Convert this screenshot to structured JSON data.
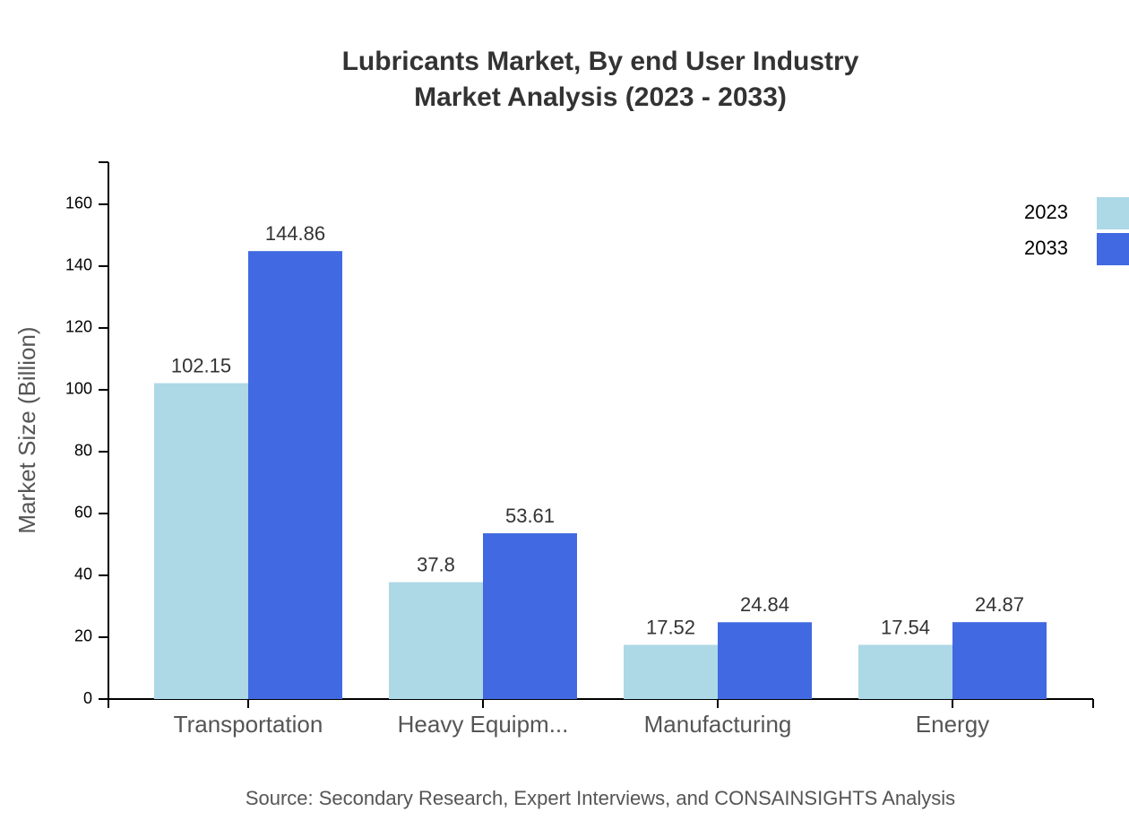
{
  "chart_data": {
    "type": "bar",
    "title": [
      "Lubricants Market, By end User Industry",
      "Market Analysis (2023 - 2033)"
    ],
    "y_label": "Market Size (Billion)",
    "source": "Source: Secondary Research, Expert Interviews, and CONSAINSIGHTS Analysis",
    "categories": [
      "Transportation",
      "Heavy Equipm...",
      "Manufacturing",
      "Energy"
    ],
    "series": [
      {
        "name": "2023",
        "color": "#add8e6",
        "values": [
          102.15,
          37.8,
          17.52,
          17.54
        ]
      },
      {
        "name": "2033",
        "color": "#4169e1",
        "values": [
          144.86,
          53.61,
          24.84,
          24.87
        ]
      }
    ],
    "ylim": [
      0,
      173.6
    ],
    "yticks": [
      0,
      20,
      40,
      60,
      80,
      100,
      120,
      140,
      160
    ],
    "legend": "top-right"
  }
}
